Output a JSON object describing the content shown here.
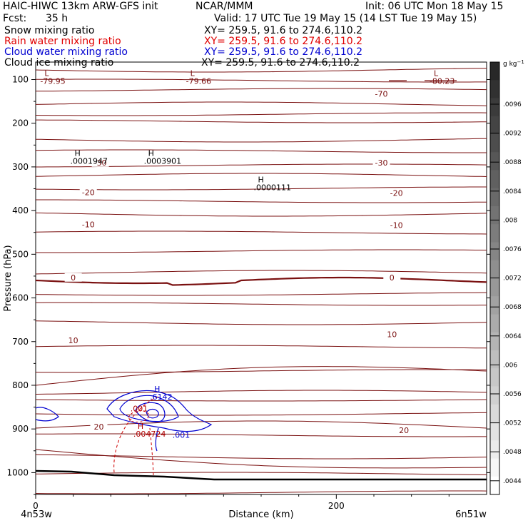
{
  "header": {
    "model": "HAIC-HIWC 13km ARW-GFS init",
    "org": "NCAR/MMM",
    "init": "Init: 06 UTC Mon 18 May 15",
    "fcst_label": "Fcst:",
    "fcst_value": "35 h",
    "valid": "Valid: 17 UTC Tue 19 May 15 (14 LST Tue 19 May 15)"
  },
  "fields": [
    {
      "name": "Snow mixing ratio",
      "xy": "XY= 259.5, 91.6 to 274.6,110.2",
      "color": "#000000"
    },
    {
      "name": "Rain water mixing ratio",
      "xy": "XY= 259.5, 91.6 to 274.6,110.2",
      "color": "#e00000"
    },
    {
      "name": "Cloud water mixing ratio",
      "xy": "XY= 259.5, 91.6 to 274.6,110.2",
      "color": "#0000d0"
    },
    {
      "name": "Cloud ice mixing ratio",
      "xy": "XY= 259.5, 91.6 to 274.6,110.2",
      "color": "#000000"
    }
  ],
  "chart_data": {
    "type": "contour",
    "xlabel": "Distance (km)",
    "ylabel": "Pressure (hPa)",
    "xlim": [
      0,
      300
    ],
    "ylim": [
      1050,
      60
    ],
    "xticks": [
      0,
      200
    ],
    "yticks": [
      100,
      200,
      300,
      400,
      500,
      600,
      700,
      800,
      900,
      1000
    ],
    "x_endpoints": {
      "left": "4n53w",
      "right": "6n51w"
    },
    "temperature_contours": {
      "color": "#7a1010",
      "labels": [
        {
          "text": "-70",
          "x": 230,
          "p": 133
        },
        {
          "text": "-30",
          "x": 43,
          "p": 290
        },
        {
          "text": "-30",
          "x": 230,
          "p": 290
        },
        {
          "text": "-20",
          "x": 35,
          "p": 358
        },
        {
          "text": "-20",
          "x": 240,
          "p": 360
        },
        {
          "text": "-10",
          "x": 35,
          "p": 432
        },
        {
          "text": "-10",
          "x": 240,
          "p": 433
        },
        {
          "text": "0",
          "x": 25,
          "p": 553
        },
        {
          "text": "0",
          "x": 237,
          "p": 553
        },
        {
          "text": "10",
          "x": 25,
          "p": 697
        },
        {
          "text": "10",
          "x": 237,
          "p": 683
        },
        {
          "text": "20",
          "x": 42,
          "p": 895
        },
        {
          "text": "20",
          "x": 245,
          "p": 903
        }
      ]
    },
    "extrema": [
      {
        "type": "L",
        "value": "-79.95",
        "x": 3,
        "p": 87,
        "color": "#7a1010"
      },
      {
        "type": "L",
        "value": "-79.66",
        "x": 100,
        "p": 87,
        "color": "#7a1010"
      },
      {
        "type": "L",
        "value": "-80.23",
        "x": 262,
        "p": 87,
        "color": "#7a1010"
      },
      {
        "type": "H",
        "value": ".0001947",
        "x": 23,
        "p": 270,
        "color": "#000000"
      },
      {
        "type": "H",
        "value": ".0003901",
        "x": 72,
        "p": 270,
        "color": "#000000"
      },
      {
        "type": "H",
        "value": ".0000111",
        "x": 145,
        "p": 330,
        "color": "#000000"
      },
      {
        "type": "H",
        "value": ".6142",
        "x": 76,
        "p": 810,
        "color": "#0000d0"
      },
      {
        "type": "H",
        "value": ".004724",
        "x": 65,
        "p": 895,
        "color": "#b00000"
      }
    ],
    "contour_labels": [
      {
        "text": ".001",
        "x": 63,
        "p": 860,
        "color": "#b00000"
      },
      {
        "text": ".001",
        "x": 91,
        "p": 920,
        "color": "#0000d0"
      }
    ],
    "colorbar": {
      "unit": "g kg",
      "ticks": [
        ".0096",
        ".0092",
        ".0088",
        ".0084",
        ".008",
        ".0076",
        ".0072",
        ".0068",
        ".0064",
        ".006",
        ".0056",
        ".0052",
        ".0048",
        ".0044"
      ]
    }
  }
}
